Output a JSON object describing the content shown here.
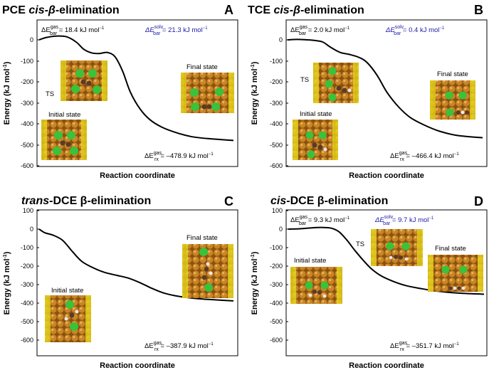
{
  "figure": {
    "panels": [
      {
        "letter": "A",
        "title_pre": "PCE ",
        "title_it": "cis-β",
        "title_post": "-elimination",
        "ylabel": "Energy (kJ mol",
        "ylabel_sup": "-1",
        "ylabel_close": ")",
        "xlabel": "Reaction coordinate",
        "ticks": [
          "0",
          "-100",
          "-200",
          "-300",
          "-400",
          "-500",
          "-600"
        ],
        "eq_gas": {
          "sym": "ΔE",
          "sup": "gas",
          "sub": "bar",
          "val": " = 18.4 kJ mol",
          "unit_sup": "−1"
        },
        "eq_solv": {
          "sym": "ΔE",
          "sup": "solv",
          "sub": "bar",
          "val": " = 21.3 kJ mol",
          "unit_sup": "−1"
        },
        "eq_rx": {
          "sym": "ΔE",
          "sup": "gas",
          "sub": "rx",
          "val": " = –478.9 kJ mol",
          "unit_sup": "−1"
        },
        "labels": {
          "ts": "TS",
          "initial": "Initial state",
          "final": "Final state"
        }
      },
      {
        "letter": "B",
        "title_pre": "TCE ",
        "title_it": "cis-β",
        "title_post": "-elimination",
        "ylabel": "Energy (kJ mol",
        "ylabel_sup": "-1",
        "ylabel_close": ")",
        "xlabel": "Reaction coordinate",
        "ticks": [
          "0",
          "-100",
          "-200",
          "-300",
          "-400",
          "-500",
          "-600"
        ],
        "eq_gas": {
          "sym": "ΔE",
          "sup": "gas",
          "sub": "bar",
          "val": " = 2.0 kJ mol",
          "unit_sup": "−1"
        },
        "eq_solv": {
          "sym": "ΔE",
          "sup": "solv",
          "sub": "bar",
          "val": " = 0.4 kJ mol",
          "unit_sup": "−1"
        },
        "eq_rx": {
          "sym": "ΔE",
          "sup": "gas",
          "sub": "rx",
          "val": " = –466.4 kJ mol",
          "unit_sup": "−1"
        },
        "labels": {
          "ts": "TS",
          "initial": "Initial state",
          "final": "Final state"
        }
      },
      {
        "letter": "C",
        "title_pre": "",
        "title_it": "trans",
        "title_post": "-DCE β-elimination",
        "ylabel": "Energy (kJ mol",
        "ylabel_sup": "-1",
        "ylabel_close": ")",
        "xlabel": "Reaction coordinate",
        "ticks": [
          "100",
          "0",
          "-100",
          "-200",
          "-300",
          "-400",
          "-500",
          "-600"
        ],
        "eq_rx": {
          "sym": "ΔE",
          "sup": "gas",
          "sub": "rx",
          "val": " = –387.9 kJ mol",
          "unit_sup": "−1"
        },
        "labels": {
          "initial": "Initial state",
          "final": "Final state"
        }
      },
      {
        "letter": "D",
        "title_pre": "",
        "title_it": "cis",
        "title_post": "-DCE β-elimination",
        "ylabel": "Energy (kJ mol",
        "ylabel_sup": "-1",
        "ylabel_close": ")",
        "xlabel": "Reaction coordinate",
        "ticks": [
          "100",
          "0",
          "-100",
          "-200",
          "-300",
          "-400",
          "-500",
          "-600"
        ],
        "eq_gas": {
          "sym": "ΔE",
          "sup": "gas",
          "sub": "bar",
          "val": " = 9.3 kJ mol",
          "unit_sup": "−1"
        },
        "eq_solv": {
          "sym": "ΔE",
          "sup": "solv",
          "sub": "bar",
          "val": " = 9.7 kJ mol",
          "unit_sup": "−1"
        },
        "eq_rx": {
          "sym": "ΔE",
          "sup": "gas",
          "sub": "rx",
          "val": " = –351.7 kJ mol",
          "unit_sup": "−1"
        },
        "labels": {
          "ts": "TS",
          "initial": "Initial state",
          "final": "Final state"
        }
      }
    ]
  },
  "colors": {
    "solv": "#1a1aaa",
    "curve": "#000000",
    "copper": "#b8741a",
    "sulfur": "#e3d21a",
    "chlorine": "#39c23a",
    "carbon": "#5a3a2a",
    "hydrogen": "#f0e6ea"
  },
  "chart_data": [
    {
      "type": "line",
      "title": "PCE cis-β-elimination",
      "xlabel": "Reaction coordinate",
      "ylabel": "Energy (kJ mol-1)",
      "ylim": [
        -600,
        0
      ],
      "x": [
        0,
        0.04,
        0.09,
        0.14,
        0.19,
        0.23,
        0.27,
        0.31,
        0.35,
        0.39,
        0.43,
        0.47,
        0.52,
        0.57,
        0.63,
        0.7,
        0.78,
        0.87,
        1.0
      ],
      "series": [
        {
          "name": "energy",
          "values": [
            0,
            12,
            18,
            15,
            -10,
            -45,
            -62,
            -65,
            -60,
            -80,
            -150,
            -250,
            -330,
            -380,
            -415,
            -440,
            -460,
            -470,
            -479
          ]
        }
      ]
    },
    {
      "type": "line",
      "title": "TCE cis-β-elimination",
      "xlabel": "Reaction coordinate",
      "ylabel": "Energy (kJ mol-1)",
      "ylim": [
        -600,
        0
      ],
      "x": [
        0,
        0.05,
        0.1,
        0.14,
        0.18,
        0.22,
        0.27,
        0.32,
        0.37,
        0.41,
        0.46,
        0.51,
        0.57,
        0.63,
        0.7,
        0.78,
        0.87,
        1.0
      ],
      "series": [
        {
          "name": "energy",
          "values": [
            0,
            2,
            0,
            -3,
            -10,
            -35,
            -60,
            -70,
            -85,
            -110,
            -170,
            -250,
            -320,
            -370,
            -405,
            -435,
            -455,
            -466
          ]
        }
      ]
    },
    {
      "type": "line",
      "title": "trans-DCE β-elimination",
      "xlabel": "Reaction coordinate",
      "ylabel": "Energy (kJ mol-1)",
      "ylim": [
        -600,
        100
      ],
      "x": [
        0,
        0.03,
        0.07,
        0.12,
        0.17,
        0.22,
        0.28,
        0.34,
        0.4,
        0.46,
        0.52,
        0.58,
        0.64,
        0.7,
        0.78,
        0.87,
        1.0
      ],
      "series": [
        {
          "name": "energy",
          "values": [
            0,
            -20,
            -32,
            -60,
            -120,
            -175,
            -210,
            -235,
            -250,
            -265,
            -290,
            -320,
            -345,
            -360,
            -372,
            -380,
            -388
          ]
        }
      ]
    },
    {
      "type": "line",
      "title": "cis-DCE β-elimination",
      "xlabel": "Reaction coordinate",
      "ylabel": "Energy (kJ mol-1)",
      "ylim": [
        -600,
        100
      ],
      "x": [
        0,
        0.06,
        0.12,
        0.18,
        0.22,
        0.26,
        0.3,
        0.34,
        0.38,
        0.42,
        0.47,
        0.53,
        0.6,
        0.68,
        0.76,
        0.86,
        1.0
      ],
      "series": [
        {
          "name": "energy",
          "values": [
            0,
            2,
            7,
            9,
            5,
            -15,
            -60,
            -115,
            -165,
            -210,
            -250,
            -280,
            -305,
            -322,
            -335,
            -345,
            -352
          ]
        }
      ]
    }
  ]
}
